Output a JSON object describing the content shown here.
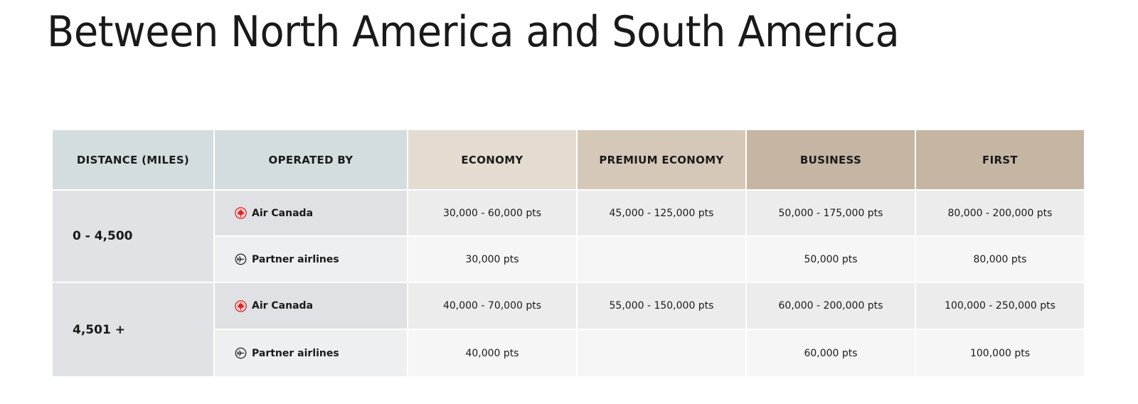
{
  "header": {
    "title": "Between North America and South America"
  },
  "table": {
    "headers": [
      "DISTANCE (MILES)",
      "OPERATED BY",
      "ECONOMY",
      "PREMIUM ECONOMY",
      "BUSINESS",
      "FIRST"
    ],
    "groups": [
      {
        "distance": "0 - 4,500",
        "rows": [
          {
            "operator": "Air Canada",
            "cells": [
              "30,000 - 60,000 pts",
              "45,000 - 125,000 pts",
              "50,000 - 175,000 pts",
              "80,000 - 200,000 pts"
            ]
          },
          {
            "operator": "Partner airlines",
            "cells": [
              "30,000 pts",
              null,
              "50,000 pts",
              "80,000 pts"
            ]
          }
        ]
      },
      {
        "distance": "4,501 +",
        "rows": [
          {
            "operator": "Air Canada",
            "cells": [
              "40,000 - 70,000 pts",
              "55,000 - 150,000 pts",
              "60,000 - 200,000 pts",
              "100,000 - 250,000 pts"
            ]
          },
          {
            "operator": "Partner airlines",
            "cells": [
              "40,000 pts",
              null,
              "60,000 pts",
              "100,000 pts"
            ]
          }
        ]
      }
    ]
  }
}
